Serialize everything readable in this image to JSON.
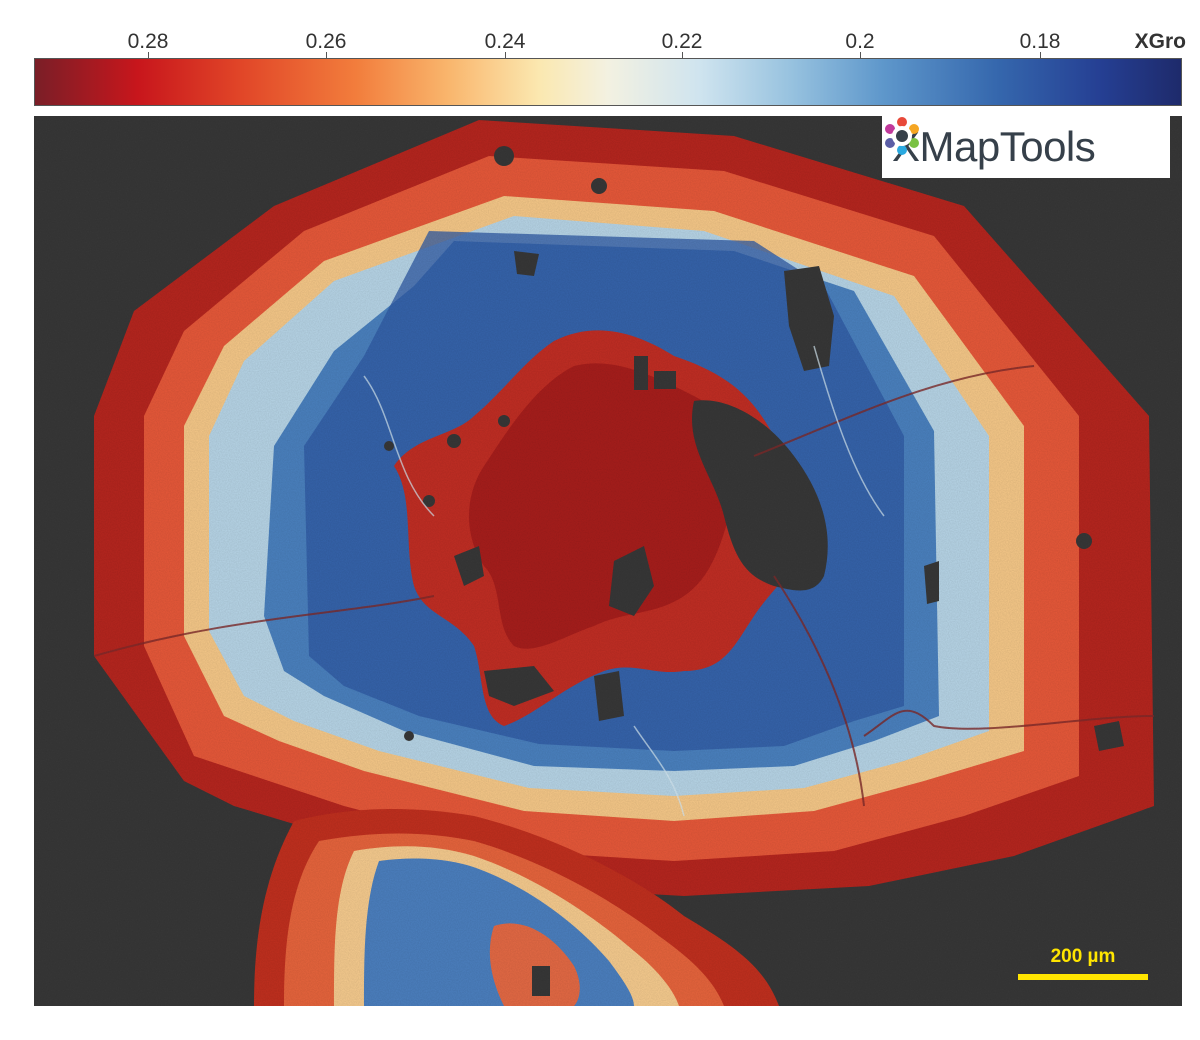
{
  "colorbar": {
    "ticks": [
      {
        "label": "0.28",
        "value": 0.28
      },
      {
        "label": "0.26",
        "value": 0.26
      },
      {
        "label": "0.24",
        "value": 0.24
      },
      {
        "label": "0.22",
        "value": 0.22
      },
      {
        "label": "0.2",
        "value": 0.2
      },
      {
        "label": "0.18",
        "value": 0.18
      }
    ],
    "unit": "XGro",
    "range": [
      0.29,
      0.17
    ],
    "colors": [
      "#7a1e27",
      "#c8161c",
      "#f27d3c",
      "#fbe8b0",
      "#97c2df",
      "#3567ad",
      "#1e2a6b"
    ]
  },
  "logo": {
    "text": "XMapTools",
    "icon": "gear-icon"
  },
  "scale_bar": {
    "label": "200 µm"
  },
  "background_color": "#383838"
}
